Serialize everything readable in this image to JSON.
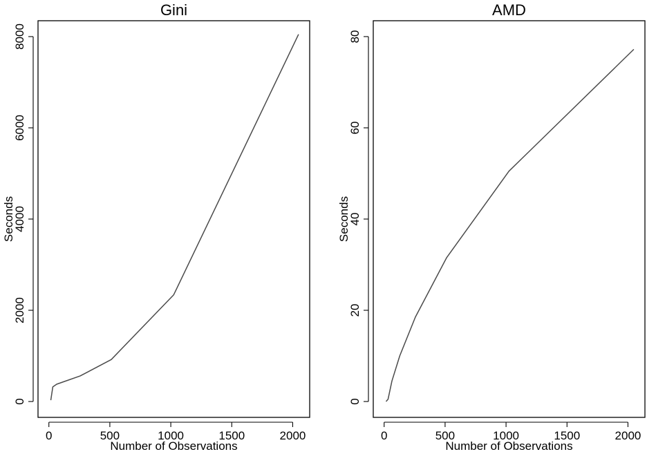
{
  "chart_data": [
    {
      "type": "line",
      "title": "Gini",
      "xlabel": "Number of Observations",
      "ylabel": "Seconds",
      "xlim": [
        0,
        2050
      ],
      "ylim": [
        0,
        8000
      ],
      "x_ticks": [
        0,
        500,
        1000,
        1500,
        2000
      ],
      "y_ticks": [
        0,
        2000,
        4000,
        6000,
        8000
      ],
      "x_tick_labels": [
        "0",
        "500",
        "1000",
        "1500",
        "2000"
      ],
      "y_tick_labels": [
        "0",
        "2000",
        "4000",
        "6000",
        "8000"
      ],
      "grid": false,
      "series": [
        {
          "x": [
            16,
            32,
            64,
            128,
            256,
            512,
            1024,
            2048
          ],
          "y": [
            30,
            320,
            380,
            440,
            560,
            920,
            2340,
            8050
          ]
        }
      ]
    },
    {
      "type": "line",
      "title": "AMD",
      "xlabel": "Number of Observations",
      "ylabel": "Seconds",
      "xlim": [
        0,
        2050
      ],
      "ylim": [
        0,
        80
      ],
      "x_ticks": [
        0,
        500,
        1000,
        1500,
        2000
      ],
      "y_ticks": [
        0,
        20,
        40,
        60,
        80
      ],
      "x_tick_labels": [
        "0",
        "500",
        "1000",
        "1500",
        "2000"
      ],
      "y_tick_labels": [
        "0",
        "20",
        "40",
        "60",
        "80"
      ],
      "grid": false,
      "series": [
        {
          "x": [
            16,
            32,
            64,
            128,
            256,
            512,
            1024,
            2048
          ],
          "y": [
            0,
            0.5,
            4.5,
            10,
            18.5,
            31.5,
            50.5,
            77.2
          ]
        }
      ]
    }
  ]
}
